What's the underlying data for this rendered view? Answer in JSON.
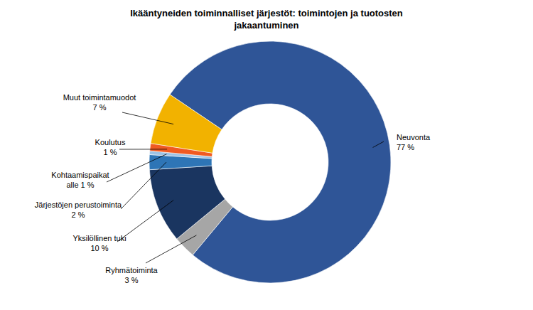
{
  "chart_data": {
    "type": "pie",
    "title": "Ikääntyneiden toiminnalliset järjestöt: toimintojen ja tuotosten jakaantuminen",
    "categories": [
      "Neuvonta",
      "Ryhmätoiminta",
      "Yksilöllinen tuki",
      "Järjestöjen perustoiminta",
      "Kohtaamispaikat",
      "Koulutus",
      "Muut toimintamuodot"
    ],
    "values": [
      77,
      3,
      10,
      2,
      0.5,
      1,
      7
    ],
    "value_labels": [
      "77 %",
      "3 %",
      "10 %",
      "2 %",
      "alle 1 %",
      "1 %",
      "7 %"
    ],
    "colors": [
      "#2f5597",
      "#a6a6a6",
      "#1a3560",
      "#2e75b6",
      "#9dc3e6",
      "#f05a22",
      "#f2b200"
    ],
    "data_labels": true
  }
}
